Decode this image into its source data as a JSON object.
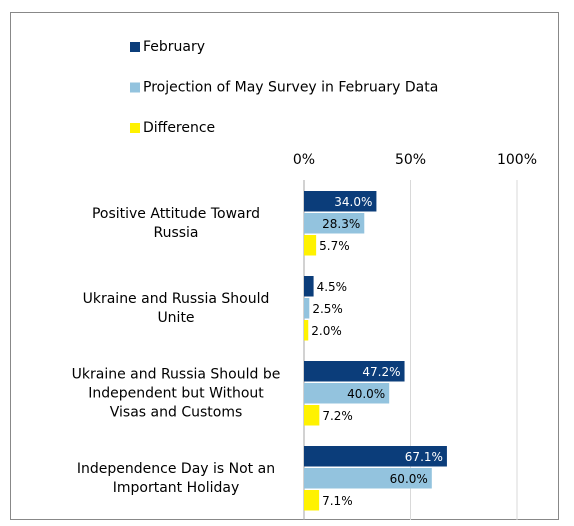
{
  "chart_data": {
    "type": "bar",
    "orientation": "horizontal",
    "categories": [
      [
        "Positive Attitude Toward",
        "Russia"
      ],
      [
        "Ukraine and Russia Should",
        "Unite"
      ],
      [
        "Ukraine and Russia Should be",
        "Independent but Without",
        "Visas and Customs"
      ],
      [
        "Independence Day is Not an",
        "Important Holiday"
      ]
    ],
    "series": [
      {
        "name": "February",
        "color": "#0b3d7a",
        "values": [
          34.0,
          4.5,
          47.2,
          67.1
        ],
        "value_labels": [
          "34.0%",
          "4.5%",
          "47.2%",
          "67.1%"
        ]
      },
      {
        "name": "Projection of May Survey in February Data",
        "color": "#93c3de",
        "values": [
          28.3,
          2.5,
          40.0,
          60.0
        ],
        "value_labels": [
          "28.3%",
          "2.5%",
          "40.0%",
          "60.0%"
        ]
      },
      {
        "name": "Difference",
        "color": "#fff200",
        "values": [
          5.7,
          2.0,
          7.2,
          7.1
        ],
        "value_labels": [
          "5.7%",
          "2.0%",
          "7.2%",
          "7.1%"
        ]
      }
    ],
    "xlim": [
      0,
      100
    ],
    "xticks": [
      {
        "value": 0,
        "label": "0%"
      },
      {
        "value": 50,
        "label": "50%"
      },
      {
        "value": 100,
        "label": "100%"
      }
    ],
    "grid": true,
    "legend": "top"
  }
}
